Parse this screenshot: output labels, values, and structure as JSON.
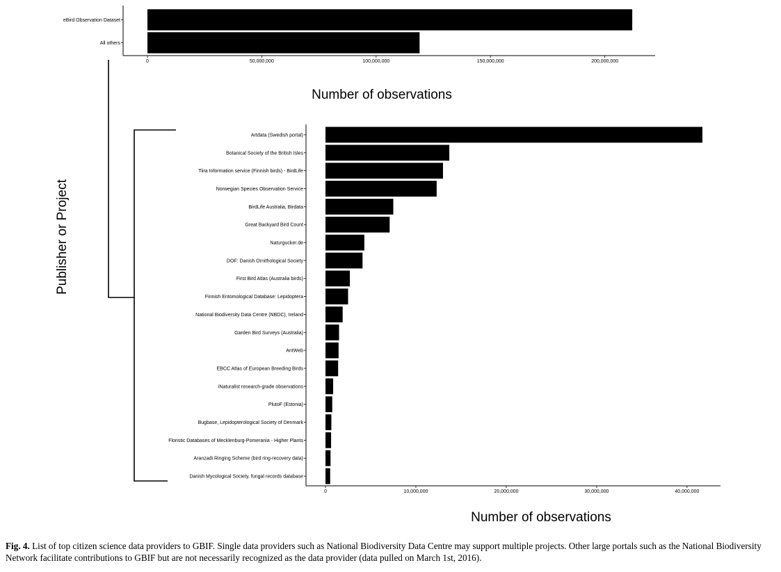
{
  "chart_data": [
    {
      "type": "bar",
      "orientation": "horizontal",
      "categories": [
        "eBird Observation Dataset",
        "All others"
      ],
      "values": [
        212000000,
        119000000
      ],
      "xlabel": "Number of observations",
      "xlim": [
        0,
        222000000
      ],
      "xticks": [
        0,
        50000000,
        100000000,
        150000000,
        200000000
      ],
      "xtick_labels": [
        "0",
        "50,000,000",
        "100,000,000",
        "150,000,000",
        "200,000,000"
      ],
      "bar_color": "#000000",
      "grid": false
    },
    {
      "type": "bar",
      "orientation": "horizontal",
      "categories": [
        "Artdata (Swedish portal)",
        "Botanical Society of the British Isles",
        "Tiira Information service (Finnish birds) - BirdLife",
        "Norwegian Species Observation Service",
        "BirdLife Australia, Birdata",
        "Great Backyard Bird Count",
        "Naturgucker.de",
        "DOF: Danish Ornithological Society",
        "First Bird Atlas (Australia birds)",
        "Finnish Entomological Database: Lepidoptera",
        "National Biodiversity Data Centre (NBDC), Ireland",
        "Garden Bird Surveys (Australia)",
        "AntWeb",
        "EBCC Atlas of European Breeding Birds",
        "iNaturalist research-grade observations",
        "PlutoF (Estonia)",
        "Bugbase, Lepidopterological Society of Denmark",
        "Floristic Databases of Mecklenburg-Pomerania - Higher Plants",
        "Aranzadi Ringing Scheme (bird ring-recovery data)",
        "Danish Mycological Society, fungal records database"
      ],
      "values": [
        41700000,
        13700000,
        13000000,
        12300000,
        7500000,
        7100000,
        4300000,
        4100000,
        2700000,
        2500000,
        1900000,
        1500000,
        1450000,
        1400000,
        850000,
        750000,
        650000,
        620000,
        560000,
        520000
      ],
      "xlabel": "Number of observations",
      "ylabel": "Publisher or Project",
      "xlim": [
        0,
        43700000
      ],
      "xticks": [
        0,
        10000000,
        20000000,
        30000000,
        40000000
      ],
      "xtick_labels": [
        "0",
        "10,000,000",
        "20,000,000",
        "30,000,000",
        "40,000,000"
      ],
      "bar_color": "#000000",
      "grid": false
    }
  ],
  "caption": {
    "label": "Fig. 4.",
    "text": "List of top citizen science data providers to GBIF. Single data providers such as National Biodiversity Data Centre may support multiple projects. Other large portals such as the National Biodiversity Network facilitate contributions to GBIF but are not necessarily recognized as the data provider (data pulled on March 1st, 2016)."
  }
}
